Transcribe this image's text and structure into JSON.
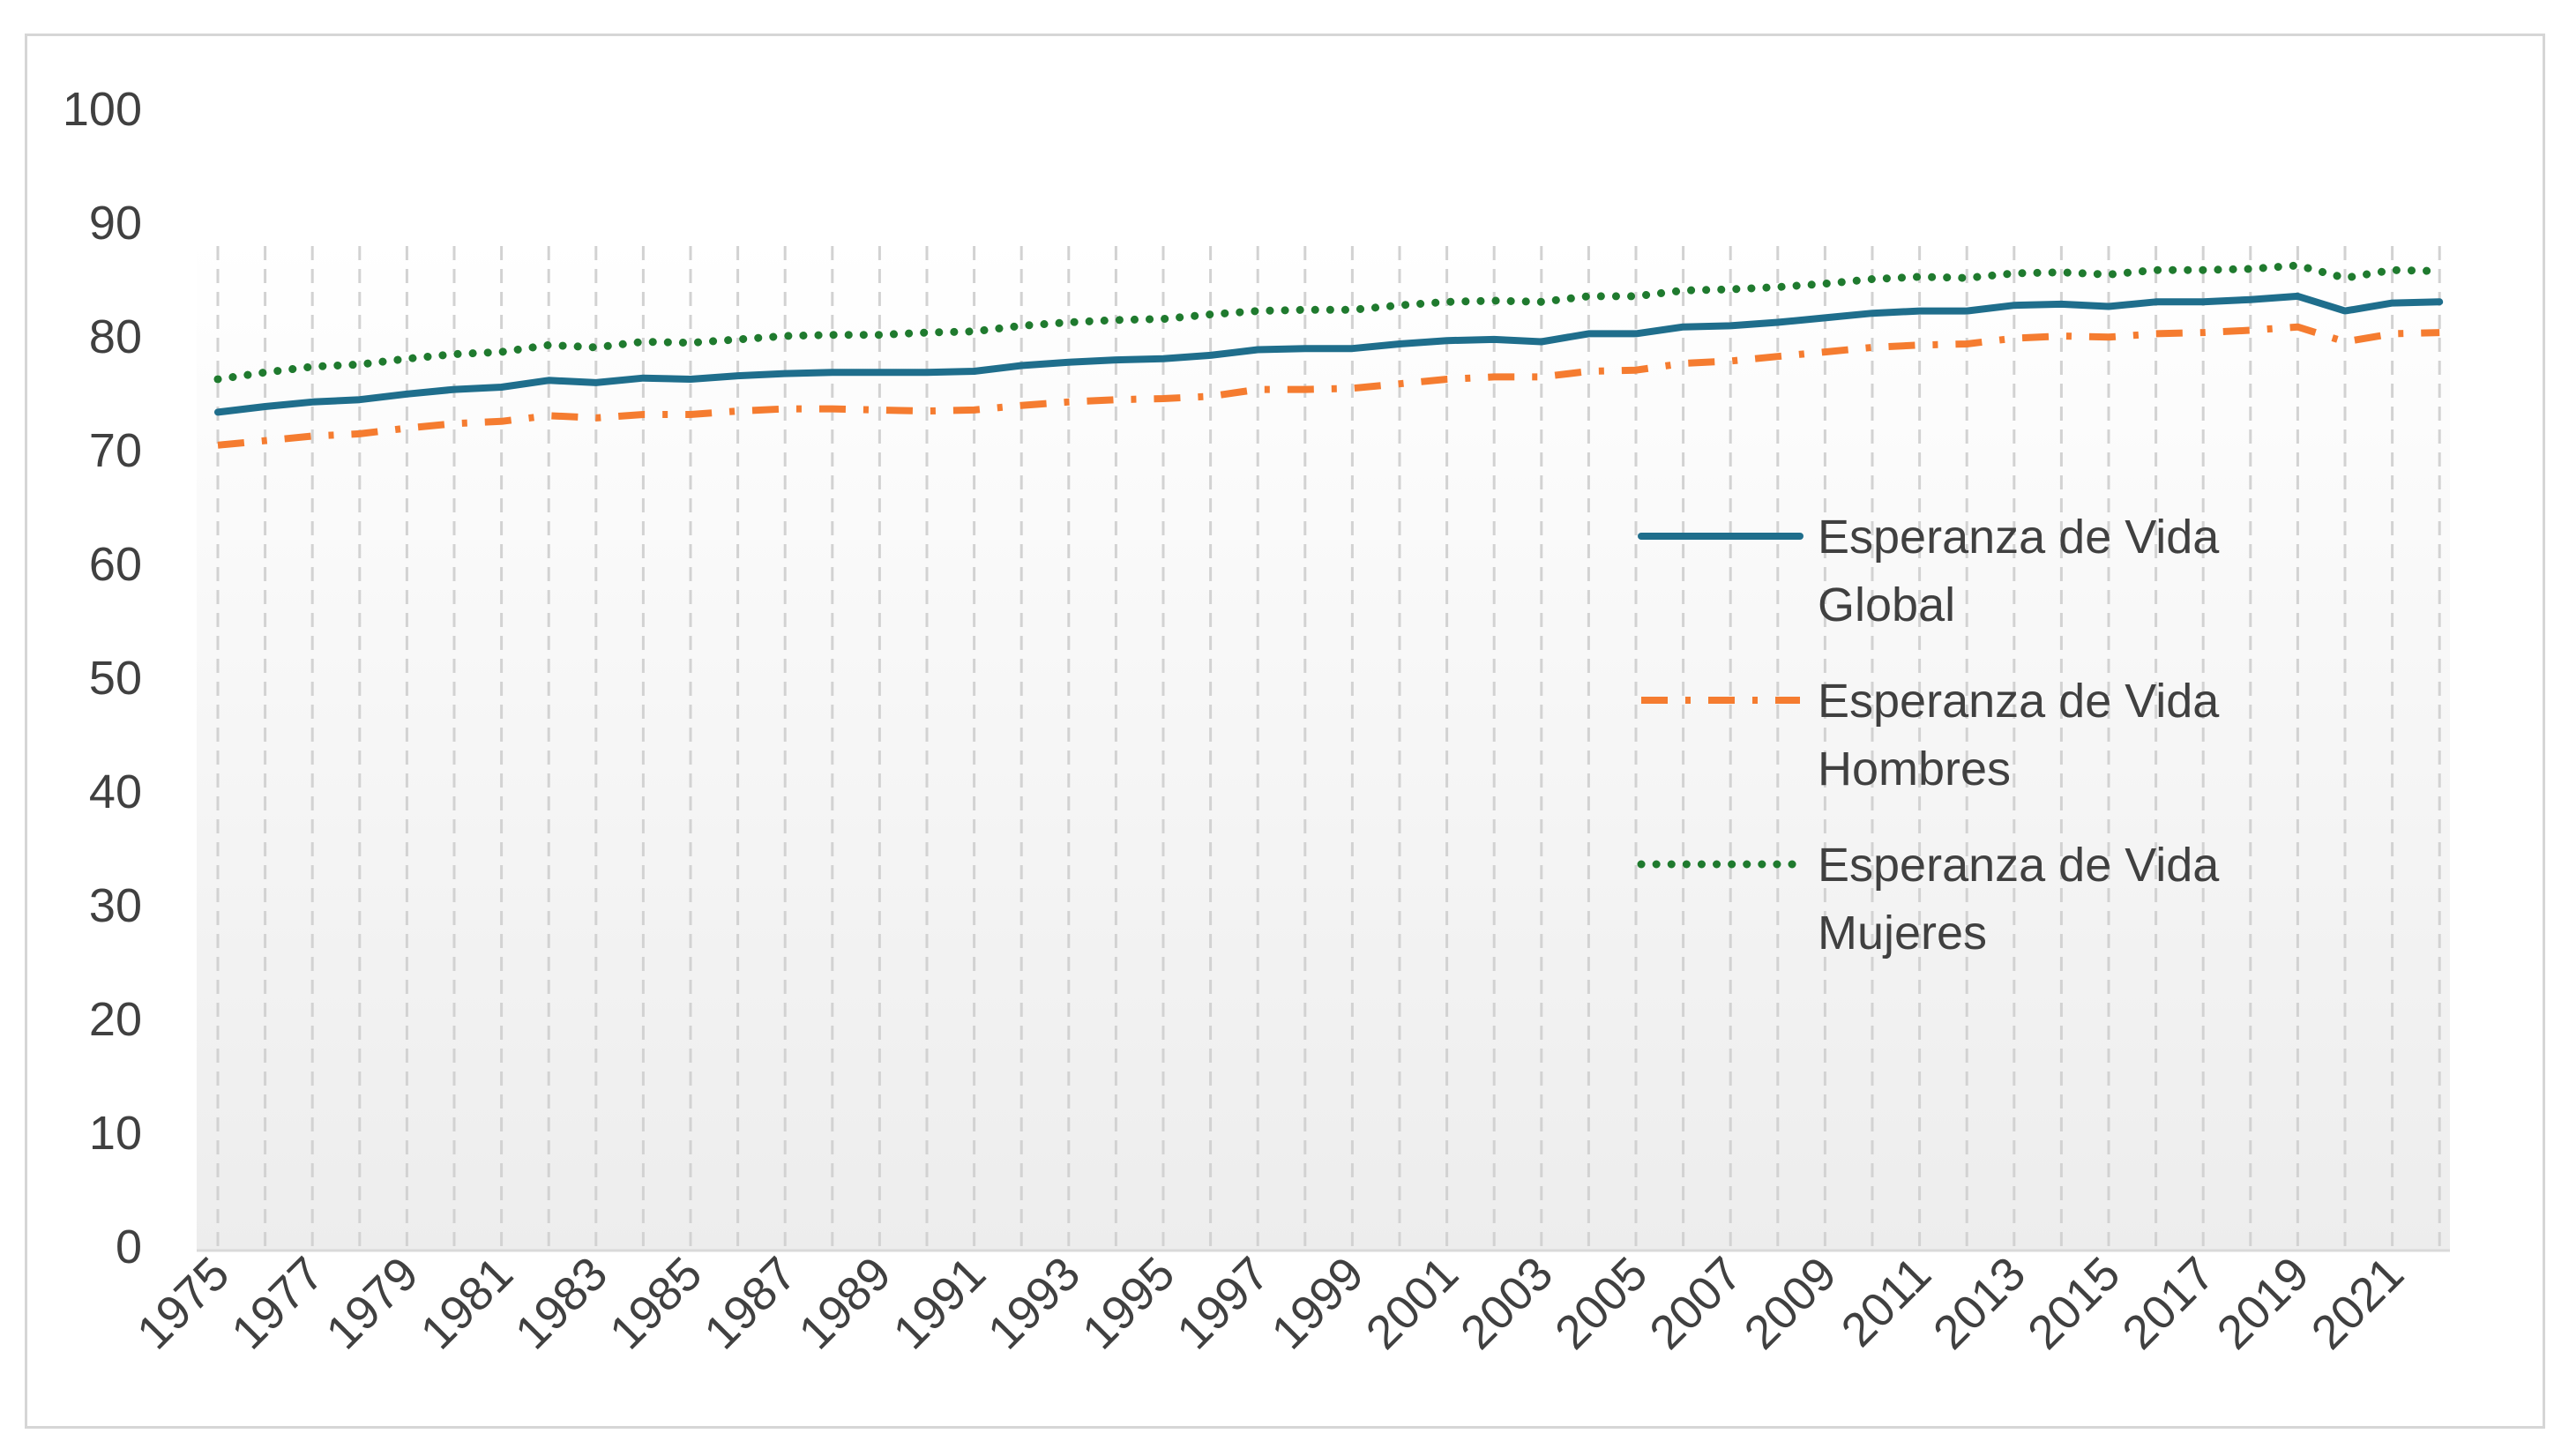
{
  "chart_data": {
    "type": "line",
    "title": "",
    "xlabel": "",
    "ylabel": "",
    "ylim": [
      0,
      100
    ],
    "y_ticks": [
      0,
      10,
      20,
      30,
      40,
      50,
      60,
      70,
      80,
      90,
      100
    ],
    "x": [
      1975,
      1976,
      1977,
      1978,
      1979,
      1980,
      1981,
      1982,
      1983,
      1984,
      1985,
      1986,
      1987,
      1988,
      1989,
      1990,
      1991,
      1992,
      1993,
      1994,
      1995,
      1996,
      1997,
      1998,
      1999,
      2000,
      2001,
      2002,
      2003,
      2004,
      2005,
      2006,
      2007,
      2008,
      2009,
      2010,
      2011,
      2012,
      2013,
      2014,
      2015,
      2016,
      2017,
      2018,
      2019,
      2020,
      2021,
      2022
    ],
    "x_tick_labels": [
      "1975",
      "1977",
      "1979",
      "1981",
      "1983",
      "1985",
      "1987",
      "1989",
      "1991",
      "1993",
      "1995",
      "1997",
      "1999",
      "2001",
      "2003",
      "2005",
      "2007",
      "2009",
      "2011",
      "2013",
      "2015",
      "2017",
      "2019",
      "2021"
    ],
    "grid": "vertical dashed",
    "legend_position": "right",
    "series": [
      {
        "name": "Esperanza de Vida Global",
        "legend_lines": [
          "Esperanza de Vida",
          "Global"
        ],
        "color": "#1F6E8C",
        "style": "solid",
        "values": [
          73.3,
          73.8,
          74.2,
          74.4,
          74.9,
          75.3,
          75.5,
          76.1,
          75.9,
          76.3,
          76.2,
          76.5,
          76.7,
          76.8,
          76.8,
          76.8,
          76.9,
          77.4,
          77.7,
          77.9,
          78.0,
          78.3,
          78.8,
          78.9,
          78.9,
          79.3,
          79.6,
          79.7,
          79.5,
          80.2,
          80.2,
          80.8,
          80.9,
          81.2,
          81.6,
          82.0,
          82.2,
          82.2,
          82.7,
          82.8,
          82.6,
          83.0,
          83.0,
          83.2,
          83.5,
          82.2,
          82.9,
          83.0
        ]
      },
      {
        "name": "Esperanza de Vida Hombres",
        "legend_lines": [
          "Esperanza de Vida",
          "Hombres"
        ],
        "color": "#F57C30",
        "style": "dashdot",
        "values": [
          70.4,
          70.8,
          71.2,
          71.4,
          71.9,
          72.3,
          72.5,
          73.0,
          72.8,
          73.1,
          73.1,
          73.4,
          73.6,
          73.6,
          73.5,
          73.4,
          73.5,
          73.9,
          74.2,
          74.4,
          74.5,
          74.7,
          75.3,
          75.3,
          75.4,
          75.8,
          76.2,
          76.4,
          76.4,
          76.9,
          77.0,
          77.6,
          77.8,
          78.2,
          78.6,
          79.0,
          79.2,
          79.3,
          79.8,
          80.0,
          79.9,
          80.2,
          80.3,
          80.5,
          80.8,
          79.5,
          80.2,
          80.3
        ]
      },
      {
        "name": "Esperanza de Vida Mujeres",
        "legend_lines": [
          "Esperanza de Vida",
          "Mujeres"
        ],
        "color": "#1F7A2E",
        "style": "dotted",
        "values": [
          76.2,
          76.8,
          77.3,
          77.5,
          78.0,
          78.4,
          78.6,
          79.2,
          79.0,
          79.5,
          79.4,
          79.7,
          80.0,
          80.1,
          80.1,
          80.3,
          80.4,
          80.9,
          81.2,
          81.4,
          81.5,
          81.9,
          82.2,
          82.3,
          82.3,
          82.7,
          83.0,
          83.1,
          83.0,
          83.5,
          83.5,
          84.0,
          84.1,
          84.3,
          84.6,
          85.0,
          85.2,
          85.1,
          85.5,
          85.6,
          85.4,
          85.8,
          85.8,
          85.9,
          86.2,
          85.1,
          85.8,
          85.7
        ]
      }
    ]
  }
}
